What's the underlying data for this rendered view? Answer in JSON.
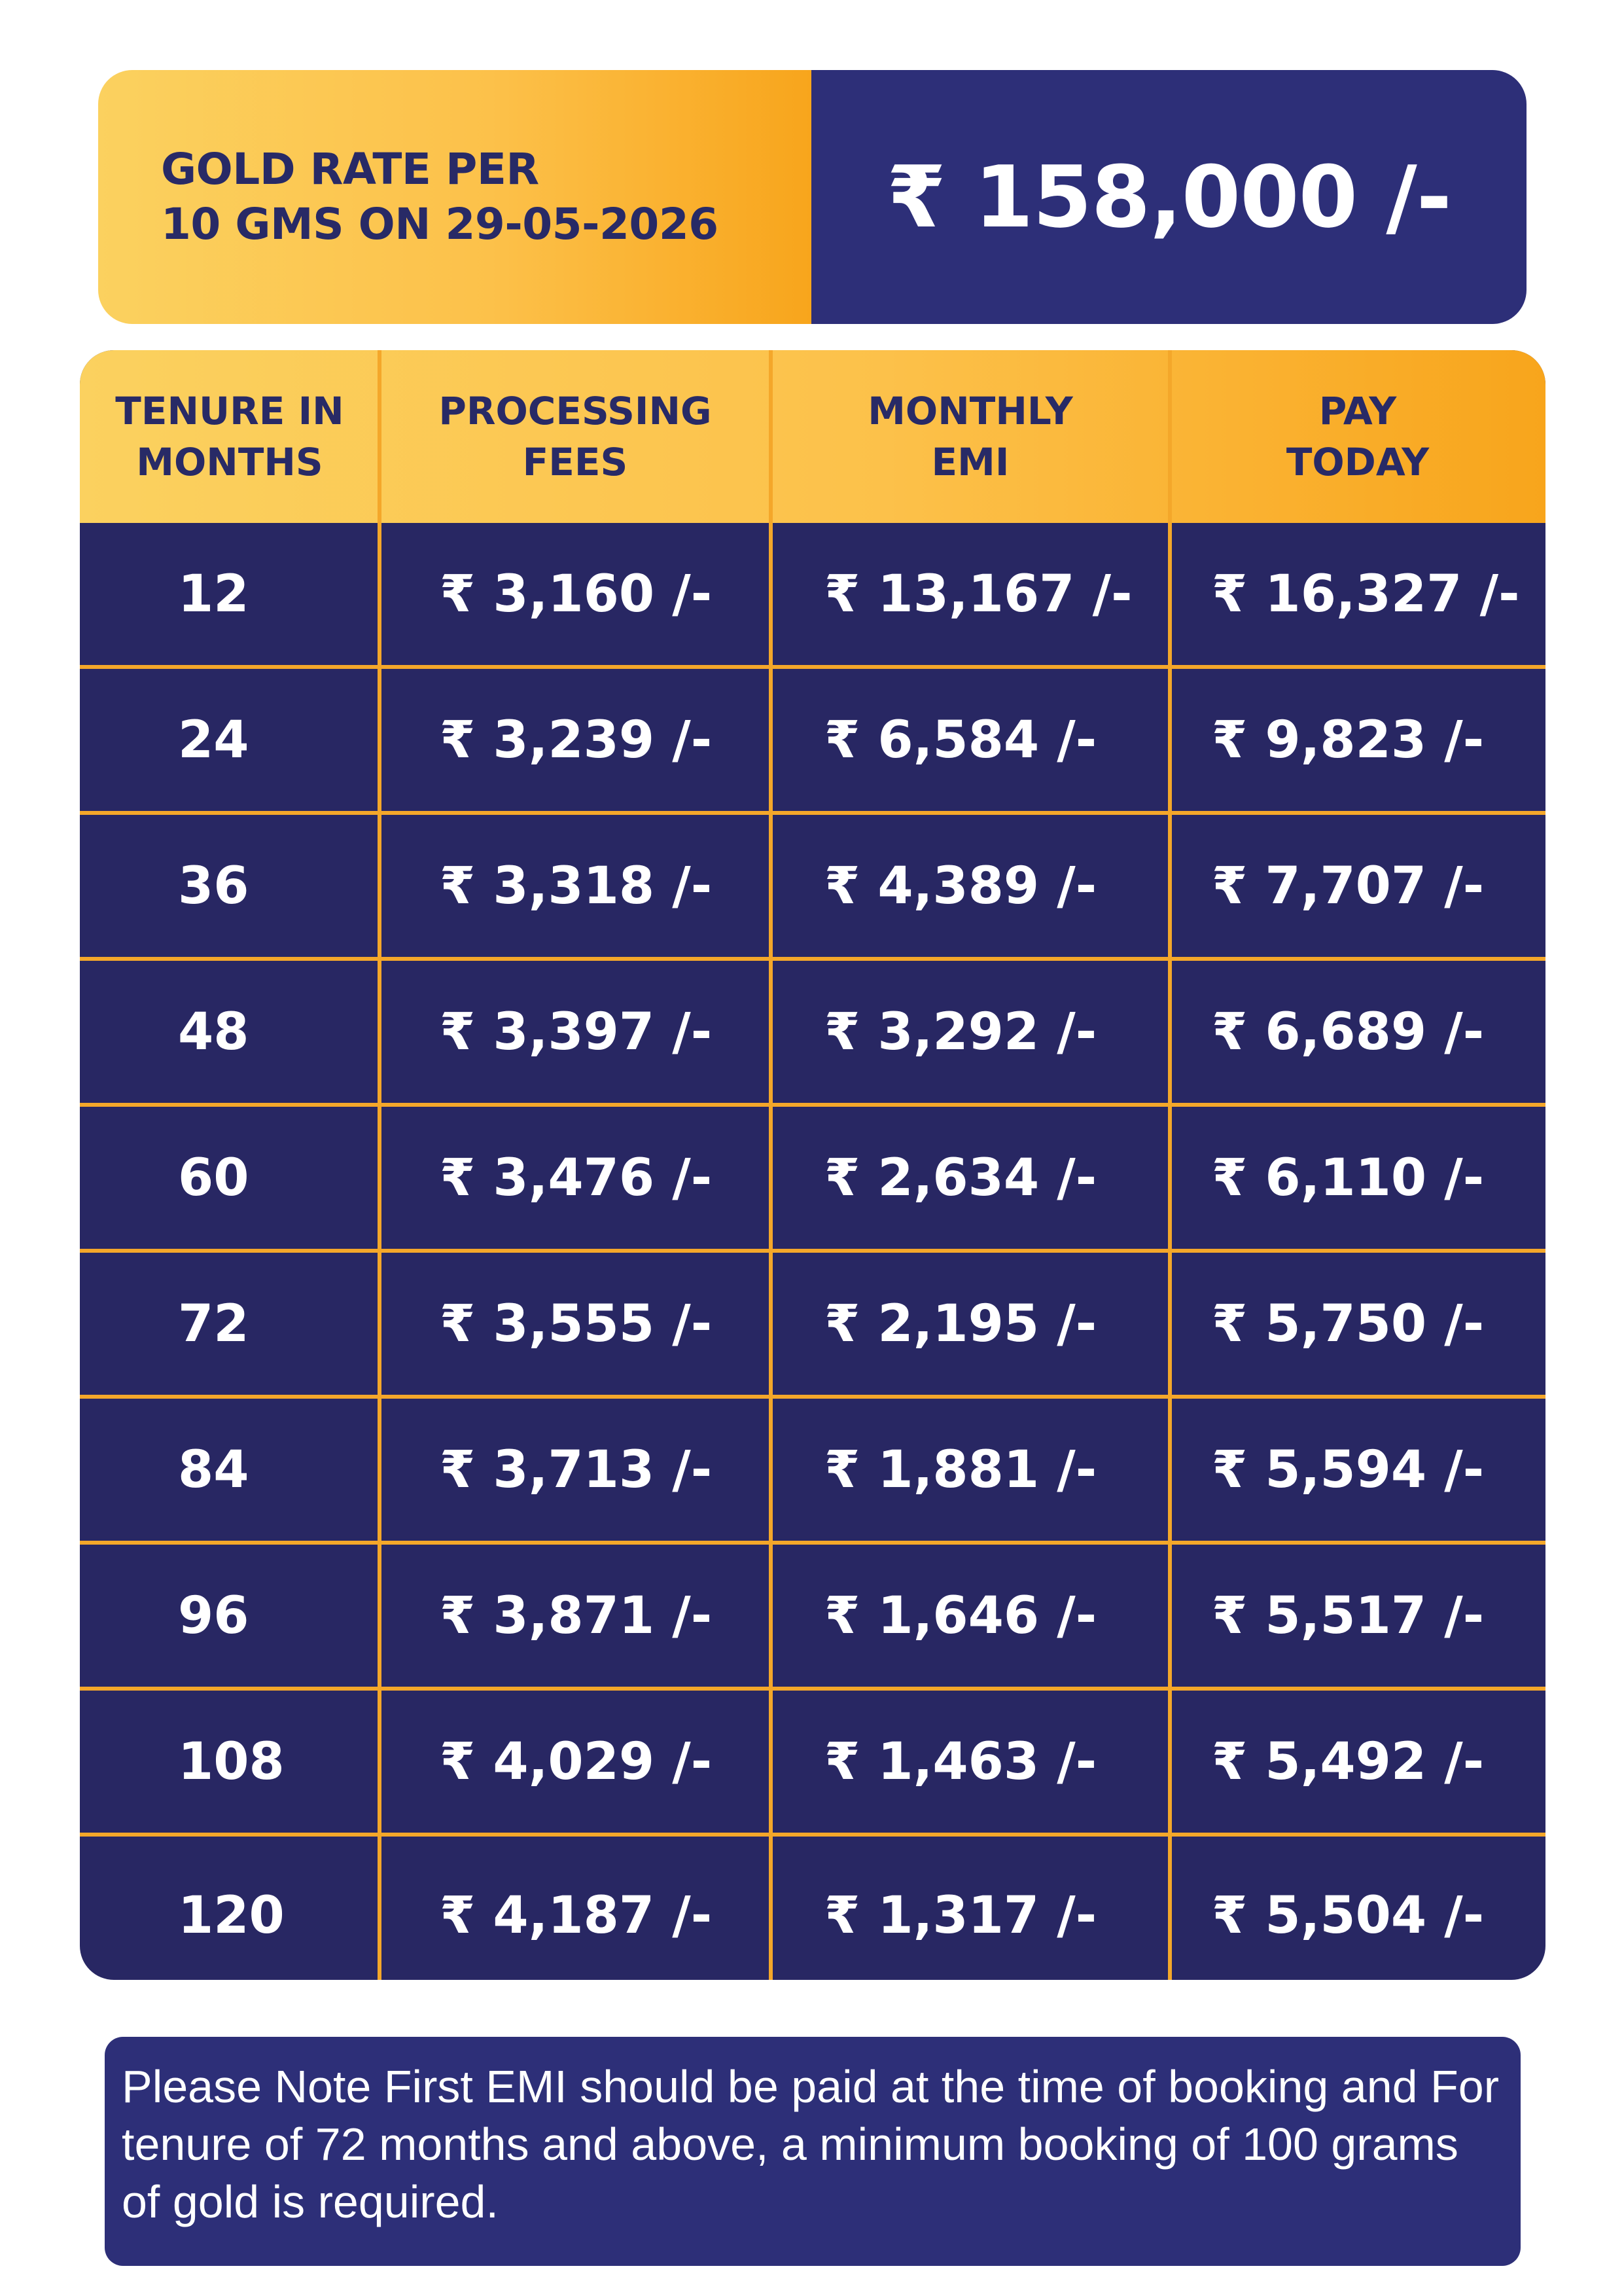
{
  "banner": {
    "label_line1": "GOLD RATE PER",
    "label_line2": "10 GMS ON 29-05-2026",
    "value": "₹ 158,000 /-"
  },
  "table": {
    "headers": [
      "TENURE IN\nMONTHS",
      "PROCESSING\nFEES",
      "MONTHLY\nEMI",
      "PAY\nTODAY"
    ],
    "rows": [
      {
        "tenure": "12",
        "fees": "₹ 3,160 /-",
        "emi": "₹ 13,167 /-",
        "pay": "₹ 16,327 /-"
      },
      {
        "tenure": "24",
        "fees": "₹ 3,239 /-",
        "emi": "₹ 6,584 /-",
        "pay": "₹ 9,823 /-"
      },
      {
        "tenure": "36",
        "fees": "₹ 3,318 /-",
        "emi": "₹ 4,389 /-",
        "pay": "₹ 7,707 /-"
      },
      {
        "tenure": "48",
        "fees": "₹ 3,397 /-",
        "emi": "₹ 3,292 /-",
        "pay": "₹ 6,689 /-"
      },
      {
        "tenure": "60",
        "fees": "₹ 3,476 /-",
        "emi": "₹ 2,634 /-",
        "pay": "₹ 6,110 /-"
      },
      {
        "tenure": "72",
        "fees": "₹ 3,555 /-",
        "emi": "₹ 2,195 /-",
        "pay": "₹ 5,750 /-"
      },
      {
        "tenure": "84",
        "fees": "₹ 3,713 /-",
        "emi": "₹ 1,881 /-",
        "pay": "₹ 5,594 /-"
      },
      {
        "tenure": "96",
        "fees": "₹ 3,871 /-",
        "emi": "₹ 1,646 /-",
        "pay": "₹ 5,517 /-"
      },
      {
        "tenure": "108",
        "fees": "₹ 4,029 /-",
        "emi": "₹ 1,463 /-",
        "pay": "₹ 5,492 /-"
      },
      {
        "tenure": "120",
        "fees": "₹ 4,187 /-",
        "emi": "₹ 1,317 /-",
        "pay": "₹ 5,504 /-"
      }
    ]
  },
  "note": {
    "text": "Please Note First EMI should be paid at the time of booking and For tenure of 72 months and above, a minimum booking of 100 grams of gold is required."
  },
  "colors": {
    "navy": "#282763",
    "navy_light": "#2d2f78",
    "gold_light": "#fbd15f",
    "gold_dark": "#f8a51c",
    "separator": "#f4a72a"
  }
}
